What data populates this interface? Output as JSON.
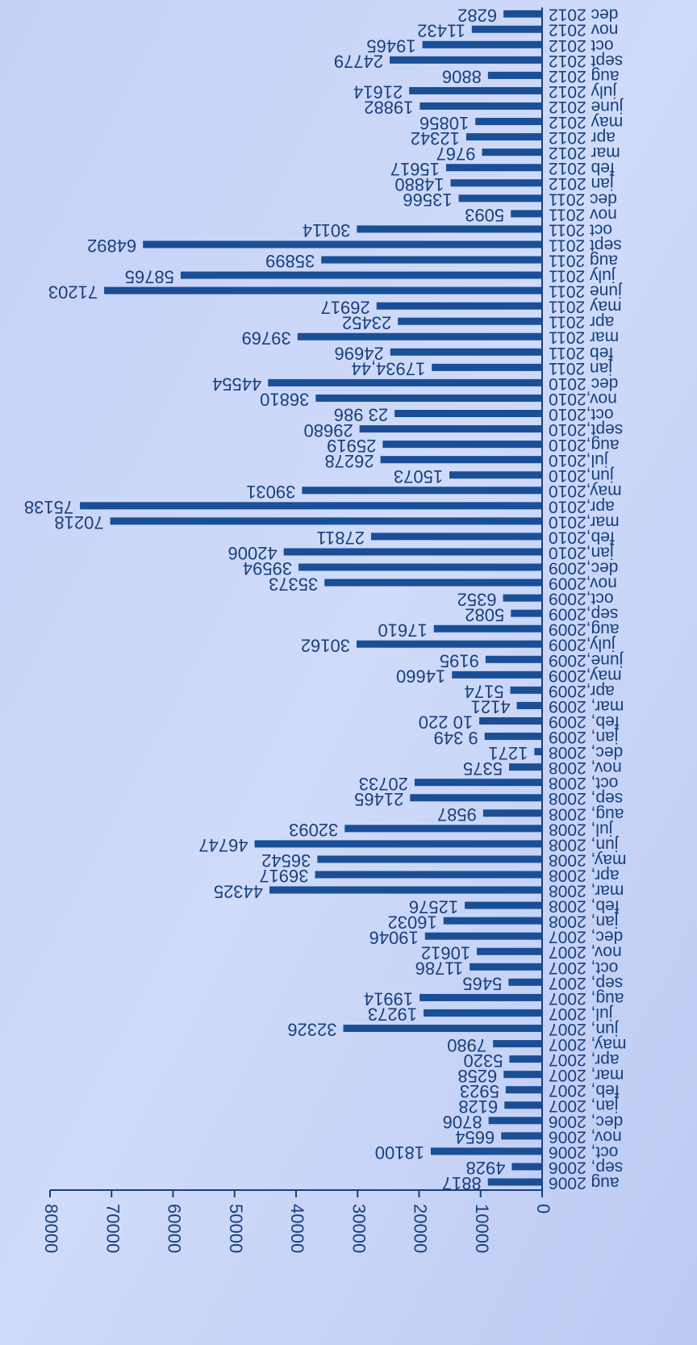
{
  "chart_data": {
    "type": "bar",
    "orientation": "horizontal",
    "categories": [
      "aug 2006",
      "sep, 2006",
      "oct, 2006",
      "nov, 2006",
      "dec, 2006",
      "jan, 2007",
      "feb, 2007",
      "mar, 2007",
      "apr, 2007",
      "may, 2007",
      "jun, 2007",
      "jul, 2007",
      "aug, 2007",
      "sep, 2007",
      "oct, 2007",
      "nov, 2007",
      "dec, 2007",
      "jan, 2008",
      "feb, 2008",
      "mar, 2008",
      "apr, 2008",
      "may, 2008",
      "jun, 2008",
      "jul, 2008",
      "aug, 2008",
      "sep, 2008",
      "oct, 2008",
      "nov, 2008",
      "dec, 2008",
      "jan, 2009",
      "feb, 2009",
      "mar, 2009",
      "apr,2009",
      "may,2009",
      "june,2009",
      "july,2009",
      "aug,2009",
      "sep,2009",
      "oct,2009",
      "nov,2009",
      "dec,2009",
      "jan,2010",
      "feb,2010",
      "mar,2010",
      "apr,2010",
      "may,2010",
      "jun,2010",
      "jul,2010",
      "aug,2010",
      "sept,2010",
      "oct,2010",
      "nov,2010",
      "dec 2010",
      "jan 2011",
      "feb 2011",
      "mar 2011",
      "apr 2011",
      "may 2011",
      "june 2011",
      "july 2011",
      "aug 2011",
      "sept 2011",
      "oct 2011",
      "nov 2011",
      "dec 2011",
      "jan 2012",
      "feb 2012",
      "mar 2012",
      "apr 2012",
      "may 2012",
      "june 2012",
      "july 2012",
      "aug 2012",
      "sept 2012",
      "oct 2012",
      "nov 2012",
      "dec 2012"
    ],
    "values": [
      8817,
      4928,
      18100,
      6654,
      8706,
      6128,
      5923,
      6258,
      5320,
      7980,
      32326,
      19273,
      19914,
      5465,
      11786,
      10612,
      19046,
      16032,
      12576,
      44325,
      36917,
      36542,
      46747,
      32093,
      9587,
      21465,
      20733,
      5375,
      1271,
      9349,
      10220,
      4121,
      5174,
      14660,
      9195,
      30162,
      17610,
      5082,
      6352,
      35373,
      39594,
      42006,
      27811,
      70218,
      75138,
      39031,
      15073,
      26278,
      25919,
      29680,
      23986,
      36810,
      44554,
      17934.44,
      24696,
      39769,
      23452,
      26917,
      71203,
      58765,
      35899,
      64892,
      30114,
      5093,
      13566,
      14880,
      15617,
      9767,
      12342,
      10856,
      19882,
      21614,
      8806,
      24779,
      19465,
      11432,
      6282
    ],
    "value_labels": [
      "8817",
      "4928",
      "18100",
      "6654",
      "8706",
      "6128",
      "5923",
      "6258",
      "5320",
      "7980",
      "32326",
      "19273",
      "19914",
      "5465",
      "11786",
      "10612",
      "19046",
      "16032",
      "12576",
      "44325",
      "36917",
      "36542",
      "46747",
      "32093",
      "9587",
      "21465",
      "20733",
      "5375",
      "1271",
      "9 349",
      "10 220",
      "4121",
      "5174",
      "14660",
      "9195",
      "30162",
      "17610",
      "5082",
      "6352",
      "35373",
      "39594",
      "42006",
      "27811",
      "70218",
      "75138",
      "39031",
      "15073",
      "26278",
      "25919",
      "29680",
      "23 986",
      "36810",
      "44554",
      "17934,44",
      "24696",
      "39769",
      "23452",
      "26917",
      "71203",
      "58765",
      "35899",
      "64892",
      "30114",
      "5093",
      "13566",
      "14880",
      "15617",
      "9767",
      "12342",
      "10856",
      "19882",
      "21614",
      "8806",
      "24779",
      "19465",
      "11432",
      "6282"
    ],
    "color": "#1a4f96",
    "xlim": [
      0,
      80000
    ],
    "xticks": [
      0,
      10000,
      20000,
      30000,
      40000,
      50000,
      60000,
      70000,
      80000
    ]
  }
}
